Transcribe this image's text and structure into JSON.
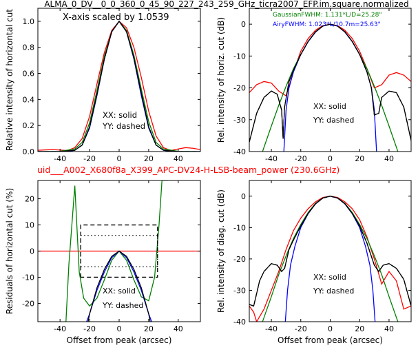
{
  "figure": {
    "title_top": "ALMA_0_DV__0_0_360_0_45_90_227_243_259_GHz_ticra2007_EFP.im.square.normalized",
    "title_mid": "uid___A002_X680f8a_X399_APC-DV24-H-LSB-beam_power (230.6GHz)",
    "colors": {
      "black": "#000000",
      "red": "#ff0000",
      "green": "#008000",
      "blue": "#0000ff",
      "mid_title": "#ff0000"
    }
  },
  "chart_data": [
    {
      "id": "top_left",
      "type": "line",
      "xlabel": "",
      "ylabel": "Relative intensity of horizontal cut",
      "xlim": [
        -55,
        55
      ],
      "ylim": [
        0,
        1.1
      ],
      "xticks": [
        -40,
        -20,
        0,
        20,
        40
      ],
      "yticks": [
        0.0,
        0.2,
        0.4,
        0.6,
        0.8,
        1.0
      ],
      "ytick_labels": [
        "0.0",
        "0.2",
        "0.4",
        "0.6",
        "0.8",
        "1.0"
      ],
      "annotations": [
        "X-axis scaled by 1.0539",
        "XX: solid",
        "YY: dashed"
      ],
      "series": [
        {
          "color": "red",
          "dash": false,
          "x": [
            -55,
            -45,
            -35,
            -30,
            -25,
            -20,
            -15,
            -10,
            -5,
            0,
            5,
            10,
            15,
            20,
            25,
            30,
            35,
            40,
            45,
            50,
            55
          ],
          "y": [
            0.01,
            0.015,
            0.008,
            0.03,
            0.1,
            0.27,
            0.52,
            0.76,
            0.93,
            1.0,
            0.95,
            0.8,
            0.57,
            0.31,
            0.12,
            0.03,
            0.008,
            0.02,
            0.03,
            0.025,
            0.015
          ]
        },
        {
          "color": "green",
          "dash": false,
          "x": [
            -55,
            -40,
            -30,
            -25,
            -20,
            -15,
            -10,
            -5,
            0,
            5,
            10,
            15,
            20,
            25,
            30,
            40,
            55
          ],
          "y": [
            0,
            0.002,
            0.02,
            0.07,
            0.22,
            0.47,
            0.73,
            0.92,
            1.0,
            0.93,
            0.74,
            0.48,
            0.23,
            0.07,
            0.02,
            0.002,
            0
          ]
        },
        {
          "color": "blue",
          "dash": false,
          "x": [
            -55,
            -35,
            -30,
            -25,
            -20,
            -15,
            -10,
            -5,
            0,
            5,
            10,
            15,
            20,
            25,
            30,
            35,
            55
          ],
          "y": [
            0,
            0.0,
            0.01,
            0.05,
            0.18,
            0.43,
            0.71,
            0.92,
            1.0,
            0.92,
            0.71,
            0.43,
            0.18,
            0.05,
            0.01,
            0.0,
            0
          ]
        },
        {
          "color": "black",
          "dash": false,
          "x": [
            -55,
            -40,
            -30,
            -25,
            -20,
            -15,
            -10,
            -5,
            0,
            5,
            10,
            15,
            20,
            25,
            30,
            40,
            55
          ],
          "y": [
            0,
            0.0,
            0.01,
            0.05,
            0.19,
            0.44,
            0.71,
            0.92,
            1.0,
            0.92,
            0.72,
            0.45,
            0.19,
            0.05,
            0.01,
            0.0,
            0
          ]
        },
        {
          "color": "black",
          "dash": true,
          "x": [
            -55,
            -40,
            -30,
            -25,
            -20,
            -15,
            -10,
            -5,
            0,
            5,
            10,
            15,
            20,
            25,
            30,
            40,
            55
          ],
          "y": [
            0,
            0.0,
            0.01,
            0.05,
            0.19,
            0.44,
            0.71,
            0.92,
            1.0,
            0.92,
            0.72,
            0.45,
            0.19,
            0.05,
            0.01,
            0.0,
            0
          ]
        }
      ]
    },
    {
      "id": "top_right",
      "type": "line",
      "xlabel": "",
      "ylabel": "Rel. intensity of horiz. cut (dB)",
      "xlim": [
        -55,
        55
      ],
      "ylim": [
        -40,
        5
      ],
      "xticks": [
        -40,
        -20,
        0,
        20,
        40
      ],
      "yticks": [
        0,
        -10,
        -20,
        -30,
        -40
      ],
      "annotations": [
        "GaussianFWHM: 1.131*L/D=25.28\"",
        "AiryFWHM: 1.023*L/10.7m=25.63\"",
        "XX: solid",
        "YY: dashed"
      ],
      "series": [
        {
          "color": "red",
          "dash": false,
          "x": [
            -55,
            -50,
            -45,
            -40,
            -35,
            -30,
            -25,
            -20,
            -15,
            -10,
            -5,
            0,
            5,
            10,
            15,
            20,
            25,
            30,
            35,
            40,
            45,
            50,
            55
          ],
          "y": [
            -21.5,
            -19,
            -18,
            -18.5,
            -21,
            -22.5,
            -15,
            -8.5,
            -4.5,
            -1.9,
            -0.45,
            0,
            -0.45,
            -1.9,
            -4.5,
            -8.5,
            -14,
            -20,
            -19,
            -16,
            -15.2,
            -16,
            -18
          ]
        },
        {
          "color": "green",
          "dash": false,
          "x": [
            -46,
            -40,
            -35,
            -30,
            -25,
            -20,
            -15,
            -10,
            -5,
            0,
            5,
            10,
            15,
            20,
            25,
            30,
            35,
            40,
            46
          ],
          "y": [
            -40,
            -32,
            -25.5,
            -19.5,
            -14,
            -9.5,
            -5.5,
            -2.4,
            -0.6,
            0,
            -0.6,
            -2.4,
            -5.5,
            -9.5,
            -14,
            -19.5,
            -25.5,
            -32,
            -40
          ]
        },
        {
          "color": "blue",
          "dash": false,
          "x": [
            -31.5,
            -30,
            -28,
            -25,
            -20,
            -15,
            -10,
            -5,
            0,
            5,
            10,
            15,
            20,
            25,
            28,
            30,
            31.5
          ],
          "y": [
            -40,
            -27,
            -20,
            -15,
            -9.5,
            -5.5,
            -2.5,
            -0.6,
            0,
            -0.6,
            -2.5,
            -5.5,
            -9.5,
            -15,
            -20,
            -27,
            -40
          ]
        },
        {
          "color": "black",
          "dash": false,
          "x": [
            -55,
            -50,
            -45,
            -40,
            -36,
            -33,
            -32,
            -31,
            -28,
            -25,
            -20,
            -15,
            -10,
            -5,
            0,
            5,
            10,
            15,
            20,
            25,
            28,
            30,
            33,
            35,
            40,
            45,
            50,
            55
          ],
          "y": [
            -37,
            -28,
            -23,
            -21,
            -22,
            -27,
            -36,
            -26,
            -18,
            -14.5,
            -9.5,
            -5.4,
            -2.4,
            -0.6,
            0,
            -0.6,
            -2.4,
            -5.4,
            -9.5,
            -15,
            -20,
            -28.5,
            -28,
            -23,
            -21,
            -21.5,
            -26,
            -36.5
          ]
        },
        {
          "color": "black",
          "dash": true,
          "x": [
            -55,
            -50,
            -45,
            -40,
            -36,
            -33,
            -32,
            -31,
            -28,
            -25,
            -20,
            -15,
            -10,
            -5,
            0,
            5,
            10,
            15,
            20,
            25,
            28,
            30,
            33,
            35,
            40,
            45,
            50,
            55
          ],
          "y": [
            -37,
            -28,
            -23,
            -21,
            -22,
            -27,
            -36,
            -26,
            -18,
            -14.5,
            -9.5,
            -5.4,
            -2.4,
            -0.6,
            0,
            -0.6,
            -2.4,
            -5.4,
            -9.5,
            -15,
            -20,
            -28.5,
            -28,
            -23,
            -21,
            -21.5,
            -26,
            -36.5
          ]
        }
      ]
    },
    {
      "id": "bottom_left",
      "type": "line",
      "xlabel": "Offset from peak (arcsec)",
      "ylabel": "Residuals of horizontal cut (%)",
      "xlim": [
        -55,
        55
      ],
      "ylim": [
        -27,
        27
      ],
      "xticks": [
        -40,
        -20,
        0,
        20,
        40
      ],
      "yticks": [
        20,
        10,
        0,
        -10,
        -20
      ],
      "annotations": [
        "XX: solid",
        "YY: dashed"
      ],
      "series": [
        {
          "color": "red",
          "dash": false,
          "x": [
            -55,
            55
          ],
          "y": [
            0,
            0
          ]
        },
        {
          "color": "green",
          "dash": false,
          "x": [
            -36,
            -34,
            -32,
            -30,
            -27,
            -24,
            -20,
            -15,
            -10,
            -5,
            0,
            5,
            10,
            15,
            20,
            24,
            27,
            29,
            31,
            33
          ],
          "y": [
            -27,
            -5,
            10,
            25,
            -8,
            -18,
            -21,
            -18,
            -11,
            -3.5,
            0,
            -3.5,
            -11,
            -17.5,
            -19,
            -10,
            10,
            27,
            27,
            27
          ]
        },
        {
          "color": "blue",
          "dash": false,
          "x": [
            -22,
            -20,
            -15,
            -10,
            -5,
            0,
            5,
            10,
            15,
            20,
            22
          ],
          "y": [
            -27,
            -24,
            -15,
            -8,
            -2.5,
            0,
            -2.5,
            -8,
            -15,
            -24,
            -27
          ]
        },
        {
          "color": "black",
          "dash": false,
          "x": [
            -21,
            -20,
            -15,
            -10,
            -5,
            0,
            5,
            10,
            15,
            20,
            21
          ],
          "y": [
            -27,
            -24,
            -14,
            -7,
            -2,
            0,
            -2,
            -7,
            -14,
            -24,
            -27
          ]
        },
        {
          "color": "black",
          "dash": true,
          "x": [
            -26,
            -26,
            26,
            26,
            -26
          ],
          "y": [
            -10,
            10,
            10,
            -10,
            -10
          ]
        },
        {
          "color": "black",
          "dotted": true,
          "x": [
            -26,
            26
          ],
          "y": [
            6,
            6
          ]
        },
        {
          "color": "black",
          "dotted": true,
          "x": [
            -26,
            26
          ],
          "y": [
            -6,
            -6
          ]
        },
        {
          "color": "black",
          "dotted": true,
          "x": [
            -26,
            -26
          ],
          "y": [
            -6,
            6
          ]
        },
        {
          "color": "black",
          "dotted": true,
          "x": [
            26,
            26
          ],
          "y": [
            -6,
            6
          ]
        }
      ]
    },
    {
      "id": "bottom_right",
      "type": "line",
      "xlabel": "Offset from peak (arcsec)",
      "ylabel": "Rel. intensity of diag. cut (dB)",
      "xlim": [
        -55,
        55
      ],
      "ylim": [
        -40,
        5
      ],
      "xticks": [
        -40,
        -20,
        0,
        20,
        40
      ],
      "yticks": [
        0,
        -10,
        -20,
        -30,
        -40
      ],
      "annotations": [
        "XX: solid",
        "YY: dashed"
      ],
      "series": [
        {
          "color": "red",
          "dash": false,
          "x": [
            -55,
            -52,
            -50,
            -45,
            -40,
            -35,
            -30,
            -25,
            -20,
            -15,
            -10,
            -5,
            0,
            5,
            10,
            15,
            20,
            25,
            30,
            35,
            40,
            45,
            50,
            55
          ],
          "y": [
            -35,
            -37,
            -40,
            -36,
            -30,
            -24,
            -17,
            -11,
            -7,
            -4,
            -1.8,
            -0.4,
            0,
            -0.4,
            -1.8,
            -4,
            -7.5,
            -13,
            -20,
            -28,
            -24,
            -27,
            -36,
            -35
          ]
        },
        {
          "color": "green",
          "dash": false,
          "x": [
            -46,
            -40,
            -35,
            -30,
            -25,
            -20,
            -15,
            -10,
            -5,
            0,
            5,
            10,
            15,
            20,
            25,
            30,
            35,
            40,
            46
          ],
          "y": [
            -40,
            -32,
            -25,
            -19,
            -13.5,
            -9,
            -5.2,
            -2.3,
            -0.6,
            0,
            -0.6,
            -2.3,
            -5.2,
            -9,
            -13.5,
            -19,
            -25,
            -32,
            -40
          ]
        },
        {
          "color": "blue",
          "dash": false,
          "x": [
            -30.5,
            -29,
            -27,
            -24,
            -20,
            -15,
            -10,
            -5,
            0,
            5,
            10,
            15,
            20,
            24,
            27,
            29,
            30.5
          ],
          "y": [
            -40,
            -30,
            -22,
            -16,
            -10,
            -5.6,
            -2.5,
            -0.6,
            0,
            -0.6,
            -2.5,
            -5.6,
            -10,
            -16,
            -22,
            -30,
            -40
          ]
        },
        {
          "color": "black",
          "dash": false,
          "x": [
            -55,
            -52,
            -48,
            -45,
            -40,
            -36,
            -33,
            -31,
            -28,
            -25,
            -20,
            -15,
            -10,
            -5,
            0,
            5,
            10,
            15,
            20,
            25,
            30,
            33,
            36,
            40,
            45,
            50,
            55
          ],
          "y": [
            -34.5,
            -35,
            -27,
            -24,
            -21.5,
            -22,
            -24,
            -23,
            -17,
            -14,
            -9.5,
            -5.5,
            -2.4,
            -0.6,
            0,
            -0.6,
            -2.4,
            -5.5,
            -9.5,
            -15,
            -22,
            -24,
            -22,
            -21.5,
            -23,
            -26.5,
            -35
          ]
        },
        {
          "color": "black",
          "dash": true,
          "x": [
            -55,
            -52,
            -48,
            -45,
            -40,
            -36,
            -33,
            -31,
            -28,
            -25,
            -20,
            -15,
            -10,
            -5,
            0,
            5,
            10,
            15,
            20,
            25,
            30,
            33,
            36,
            40,
            45,
            50,
            55
          ],
          "y": [
            -34.5,
            -35,
            -27,
            -24,
            -21.5,
            -22,
            -24,
            -23,
            -17,
            -14,
            -9.5,
            -5.5,
            -2.4,
            -0.6,
            0,
            -0.6,
            -2.4,
            -5.5,
            -9.5,
            -15,
            -22,
            -24,
            -22,
            -21.5,
            -23,
            -26.5,
            -35
          ]
        }
      ]
    }
  ]
}
